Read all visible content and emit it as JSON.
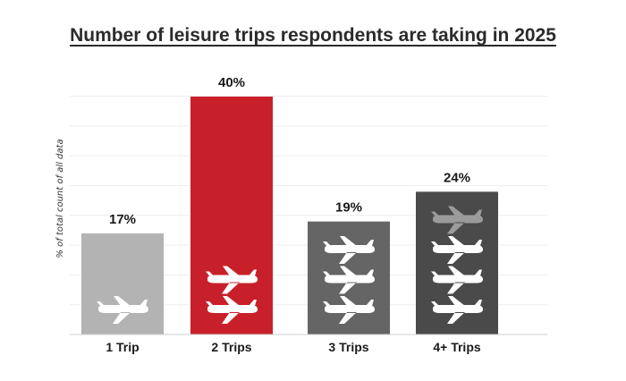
{
  "chart_data": {
    "type": "bar",
    "title": "Number of leisure trips respondents are taking in 2025",
    "ylabel": "% of total count of all data",
    "xlabel": "",
    "categories": [
      "1 Trip",
      "2 Trips",
      "3 Trips",
      "4+ Trips"
    ],
    "values": [
      17,
      40,
      19,
      24
    ],
    "value_labels": [
      "17%",
      "40%",
      "19%",
      "24%"
    ],
    "ylim": [
      0,
      40
    ],
    "grid": true,
    "colors": [
      "#b3b3b3",
      "#c8202a",
      "#656565",
      "#4a4a4a"
    ],
    "plane_icons": [
      1,
      2,
      3,
      4
    ],
    "icon": "airplane-icon"
  }
}
